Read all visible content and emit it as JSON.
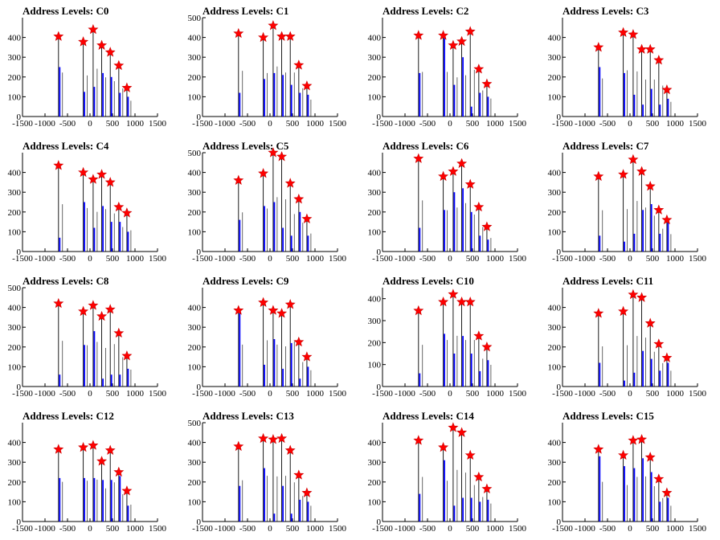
{
  "figure": {
    "colors": {
      "bar": "#0000ff",
      "spike": "#000000",
      "star_fill": "#ff0000",
      "star_edge": "#cc0000",
      "axis": "#000000"
    }
  },
  "chart_data": [
    {
      "type": "bar",
      "title": "Address Levels: C0",
      "xlim": [
        -1500,
        1500
      ],
      "ylim": [
        0,
        500
      ],
      "yticks": [
        0,
        100,
        200,
        300,
        400
      ],
      "xticks": [
        -1500,
        -1000,
        -500,
        0,
        500,
        1000,
        1500
      ],
      "levels": [
        -700,
        -150,
        70,
        260,
        450,
        640,
        820
      ],
      "counts": [
        405,
        378,
        440,
        360,
        325,
        258,
        145
      ],
      "hist_peaks": [
        250,
        125,
        150,
        220,
        200,
        120,
        100
      ],
      "grid": false
    },
    {
      "type": "bar",
      "title": "Address Levels: C1",
      "xlim": [
        -1500,
        1500
      ],
      "ylim": [
        0,
        500
      ],
      "yticks": [
        0,
        100,
        200,
        300,
        400,
        500
      ],
      "xticks": [
        -1500,
        -1000,
        -500,
        0,
        500,
        1000,
        1500
      ],
      "levels": [
        -700,
        -150,
        70,
        260,
        450,
        640,
        820
      ],
      "counts": [
        420,
        400,
        460,
        405,
        405,
        260,
        155
      ],
      "hist_peaks": [
        120,
        190,
        220,
        210,
        160,
        120,
        110
      ],
      "grid": false
    },
    {
      "type": "bar",
      "title": "Address Levels: C2",
      "xlim": [
        -1500,
        1500
      ],
      "ylim": [
        0,
        500
      ],
      "yticks": [
        0,
        100,
        200,
        300,
        400
      ],
      "xticks": [
        -1500,
        -1000,
        -500,
        0,
        500,
        1000,
        1500
      ],
      "levels": [
        -700,
        -150,
        70,
        260,
        450,
        640,
        820
      ],
      "counts": [
        410,
        410,
        360,
        380,
        430,
        240,
        165
      ],
      "hist_peaks": [
        220,
        400,
        160,
        300,
        50,
        120,
        100
      ],
      "grid": false
    },
    {
      "type": "bar",
      "title": "Address Levels: C3",
      "xlim": [
        -1500,
        1500
      ],
      "ylim": [
        0,
        500
      ],
      "yticks": [
        0,
        100,
        200,
        300,
        400
      ],
      "xticks": [
        -1500,
        -1000,
        -500,
        0,
        500,
        1000,
        1500
      ],
      "levels": [
        -700,
        -150,
        70,
        260,
        450,
        640,
        820
      ],
      "counts": [
        350,
        425,
        415,
        340,
        340,
        285,
        135
      ],
      "hist_peaks": [
        250,
        220,
        110,
        60,
        140,
        60,
        90
      ],
      "grid": false
    },
    {
      "type": "bar",
      "title": "Address Levels: C4",
      "xlim": [
        -1500,
        1500
      ],
      "ylim": [
        0,
        500
      ],
      "yticks": [
        0,
        100,
        200,
        300,
        400
      ],
      "xticks": [
        -1500,
        -1000,
        -500,
        0,
        500,
        1000,
        1500
      ],
      "levels": [
        -700,
        -150,
        70,
        260,
        450,
        640,
        820
      ],
      "counts": [
        435,
        400,
        365,
        390,
        350,
        225,
        195
      ],
      "hist_peaks": [
        70,
        250,
        120,
        230,
        150,
        150,
        100
      ],
      "grid": false
    },
    {
      "type": "bar",
      "title": "Address Levels: C5",
      "xlim": [
        -1500,
        1500
      ],
      "ylim": [
        0,
        500
      ],
      "yticks": [
        0,
        100,
        200,
        300,
        400,
        500
      ],
      "xticks": [
        -1500,
        -1000,
        -500,
        0,
        500,
        1000,
        1500
      ],
      "levels": [
        -700,
        -150,
        70,
        260,
        450,
        640,
        820
      ],
      "counts": [
        360,
        395,
        500,
        480,
        345,
        265,
        165
      ],
      "hist_peaks": [
        160,
        230,
        250,
        120,
        80,
        200,
        80
      ],
      "grid": false
    },
    {
      "type": "bar",
      "title": "Address Levels: C6",
      "xlim": [
        -1500,
        1500
      ],
      "ylim": [
        0,
        500
      ],
      "yticks": [
        0,
        100,
        200,
        300,
        400
      ],
      "xticks": [
        -1500,
        -1000,
        -500,
        0,
        500,
        1000,
        1500
      ],
      "levels": [
        -700,
        -150,
        70,
        260,
        450,
        640,
        820
      ],
      "counts": [
        470,
        380,
        405,
        445,
        340,
        225,
        125
      ],
      "hist_peaks": [
        120,
        210,
        300,
        320,
        200,
        80,
        60
      ],
      "grid": false
    },
    {
      "type": "bar",
      "title": "Address Levels: C7",
      "xlim": [
        -1500,
        1500
      ],
      "ylim": [
        0,
        500
      ],
      "yticks": [
        0,
        100,
        200,
        300,
        400
      ],
      "xticks": [
        -1500,
        -1000,
        -500,
        0,
        500,
        1000,
        1500
      ],
      "levels": [
        -700,
        -150,
        70,
        260,
        450,
        640,
        820
      ],
      "counts": [
        380,
        390,
        465,
        405,
        330,
        210,
        160
      ],
      "hist_peaks": [
        80,
        50,
        90,
        210,
        240,
        90,
        150
      ],
      "grid": false
    },
    {
      "type": "bar",
      "title": "Address Levels: C8",
      "xlim": [
        -1500,
        1500
      ],
      "ylim": [
        0,
        500
      ],
      "yticks": [
        0,
        100,
        200,
        300,
        400,
        500
      ],
      "xticks": [
        -1500,
        -1000,
        -500,
        0,
        500,
        1000,
        1500
      ],
      "levels": [
        -700,
        -150,
        70,
        260,
        450,
        640,
        820
      ],
      "counts": [
        420,
        380,
        410,
        355,
        390,
        270,
        155
      ],
      "hist_peaks": [
        60,
        210,
        280,
        40,
        60,
        60,
        90
      ],
      "grid": false
    },
    {
      "type": "bar",
      "title": "Address Levels: C9",
      "xlim": [
        -1500,
        1500
      ],
      "ylim": [
        0,
        500
      ],
      "yticks": [
        0,
        100,
        200,
        300,
        400
      ],
      "xticks": [
        -1500,
        -1000,
        -500,
        0,
        500,
        1000,
        1500
      ],
      "levels": [
        -700,
        -150,
        70,
        260,
        450,
        640,
        820
      ],
      "counts": [
        385,
        425,
        385,
        370,
        415,
        225,
        150
      ],
      "hist_peaks": [
        370,
        110,
        240,
        90,
        220,
        40,
        100
      ],
      "grid": false
    },
    {
      "type": "bar",
      "title": "Address Levels: C10",
      "xlim": [
        -1500,
        1500
      ],
      "ylim": [
        0,
        450
      ],
      "yticks": [
        0,
        100,
        200,
        300,
        400
      ],
      "xticks": [
        -1500,
        -1000,
        -500,
        0,
        500,
        1000,
        1500
      ],
      "levels": [
        -700,
        -150,
        70,
        260,
        450,
        640,
        820
      ],
      "counts": [
        345,
        385,
        420,
        385,
        385,
        230,
        180
      ],
      "hist_peaks": [
        60,
        240,
        150,
        230,
        150,
        70,
        120
      ],
      "grid": false
    },
    {
      "type": "bar",
      "title": "Address Levels: C11",
      "xlim": [
        -1500,
        1500
      ],
      "ylim": [
        0,
        500
      ],
      "yticks": [
        0,
        100,
        200,
        300,
        400
      ],
      "xticks": [
        -1500,
        -1000,
        -500,
        0,
        500,
        1000,
        1500
      ],
      "levels": [
        -700,
        -150,
        70,
        260,
        450,
        640,
        820
      ],
      "counts": [
        370,
        380,
        465,
        450,
        320,
        215,
        145
      ],
      "hist_peaks": [
        120,
        30,
        70,
        180,
        140,
        80,
        120
      ],
      "grid": false
    },
    {
      "type": "bar",
      "title": "Address Levels: C12",
      "xlim": [
        -1500,
        1500
      ],
      "ylim": [
        0,
        500
      ],
      "yticks": [
        0,
        100,
        200,
        300,
        400
      ],
      "xticks": [
        -1500,
        -1000,
        -500,
        0,
        500,
        1000,
        1500
      ],
      "levels": [
        -700,
        -150,
        70,
        260,
        450,
        640,
        820
      ],
      "counts": [
        365,
        375,
        385,
        305,
        360,
        250,
        155
      ],
      "hist_peaks": [
        220,
        220,
        220,
        210,
        210,
        230,
        80
      ],
      "grid": false
    },
    {
      "type": "bar",
      "title": "Address Levels: C13",
      "xlim": [
        -1500,
        1500
      ],
      "ylim": [
        0,
        500
      ],
      "yticks": [
        0,
        100,
        200,
        300,
        400,
        500
      ],
      "xticks": [
        -1500,
        -1000,
        -500,
        0,
        500,
        1000,
        1500
      ],
      "levels": [
        -700,
        -150,
        70,
        260,
        450,
        640,
        820
      ],
      "counts": [
        380,
        420,
        415,
        420,
        360,
        235,
        145
      ],
      "hist_peaks": [
        180,
        270,
        40,
        180,
        40,
        110,
        100
      ],
      "grid": false
    },
    {
      "type": "bar",
      "title": "Address Levels: C14",
      "xlim": [
        -1500,
        1500
      ],
      "ylim": [
        0,
        500
      ],
      "yticks": [
        0,
        100,
        200,
        300,
        400
      ],
      "xticks": [
        -1500,
        -1000,
        -500,
        0,
        500,
        1000,
        1500
      ],
      "levels": [
        -700,
        -150,
        70,
        260,
        450,
        640,
        820
      ],
      "counts": [
        410,
        375,
        475,
        450,
        335,
        225,
        165
      ],
      "hist_peaks": [
        140,
        310,
        80,
        120,
        120,
        100,
        110
      ],
      "grid": false
    },
    {
      "type": "bar",
      "title": "Address Levels: C15",
      "xlim": [
        -1500,
        1500
      ],
      "ylim": [
        0,
        500
      ],
      "yticks": [
        0,
        100,
        200,
        300,
        400
      ],
      "xticks": [
        -1500,
        -1000,
        -500,
        0,
        500,
        1000,
        1500
      ],
      "levels": [
        -700,
        -150,
        70,
        260,
        450,
        640,
        820
      ],
      "counts": [
        365,
        335,
        410,
        415,
        325,
        215,
        145
      ],
      "hist_peaks": [
        330,
        280,
        270,
        320,
        250,
        100,
        120
      ],
      "grid": false
    }
  ]
}
